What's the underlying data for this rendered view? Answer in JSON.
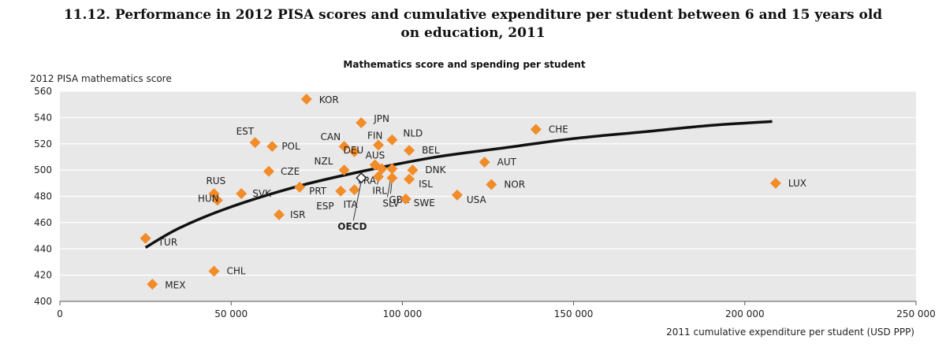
{
  "figure": {
    "title_line1": "11.12.  Performance in 2012 PISA scores and cumulative expenditure per student between 6 and 15 years old",
    "title_line2": "on education, 2011"
  },
  "colors": {
    "marker": "#f28c28",
    "panel": "#e8e8e8",
    "trend": "#111111"
  },
  "chart_data": {
    "type": "scatter",
    "title": "Mathematics score and spending per student",
    "xlabel": "2011 cumulative expenditure per student (USD PPP)",
    "ylabel": "2012 PISA mathematics score",
    "xlim": [
      0,
      250000
    ],
    "ylim": [
      400,
      560
    ],
    "xticks": [
      0,
      50000,
      100000,
      150000,
      200000,
      250000
    ],
    "xtick_labels": [
      "0",
      "50 000",
      "100 000",
      "150 000",
      "200 000",
      "250 000"
    ],
    "yticks": [
      400,
      420,
      440,
      460,
      480,
      500,
      520,
      540,
      560
    ],
    "ytick_labels": [
      "400",
      "420",
      "440",
      "460",
      "480",
      "500",
      "520",
      "540",
      "560"
    ],
    "grid": "horizontal",
    "points": [
      {
        "label": "KOR",
        "x": 72000,
        "y": 554
      },
      {
        "label": "JPN",
        "x": 88000,
        "y": 536
      },
      {
        "label": "CHE",
        "x": 139000,
        "y": 531
      },
      {
        "label": "FIN",
        "x": 93000,
        "y": 519
      },
      {
        "label": "NLD",
        "x": 97000,
        "y": 523
      },
      {
        "label": "CAN",
        "x": 83000,
        "y": 518
      },
      {
        "label": "EST",
        "x": 57000,
        "y": 521
      },
      {
        "label": "POL",
        "x": 62000,
        "y": 518
      },
      {
        "label": "BEL",
        "x": 102000,
        "y": 515
      },
      {
        "label": "DEU",
        "x": 86000,
        "y": 514
      },
      {
        "label": "AUS",
        "x": 92000,
        "y": 504
      },
      {
        "label": "AUT",
        "x": 124000,
        "y": 506
      },
      {
        "label": "NZL",
        "x": 83000,
        "y": 500
      },
      {
        "label": "FRA",
        "x": 93000,
        "y": 495
      },
      {
        "label": "DNK",
        "x": 103000,
        "y": 500
      },
      {
        "label": "CZE",
        "x": 61000,
        "y": 499
      },
      {
        "label": "IRL",
        "x": 94000,
        "y": 501
      },
      {
        "label": "GBR",
        "x": 97000,
        "y": 494
      },
      {
        "label": "ISL",
        "x": 102000,
        "y": 493
      },
      {
        "label": "SLV",
        "x": 97000,
        "y": 501
      },
      {
        "label": "NOR",
        "x": 126000,
        "y": 489
      },
      {
        "label": "LUX",
        "x": 209000,
        "y": 490
      },
      {
        "label": "RUS",
        "x": 45000,
        "y": 482
      },
      {
        "label": "HUN",
        "x": 46000,
        "y": 477
      },
      {
        "label": "SVK",
        "x": 53000,
        "y": 482
      },
      {
        "label": "PRT",
        "x": 70000,
        "y": 487
      },
      {
        "label": "ESP",
        "x": 82000,
        "y": 484
      },
      {
        "label": "ITA",
        "x": 86000,
        "y": 485
      },
      {
        "label": "USA",
        "x": 116000,
        "y": 481
      },
      {
        "label": "SWE",
        "x": 101000,
        "y": 478
      },
      {
        "label": "ISR",
        "x": 64000,
        "y": 466
      },
      {
        "label": "TUR",
        "x": 25000,
        "y": 448
      },
      {
        "label": "CHL",
        "x": 45000,
        "y": 423
      },
      {
        "label": "MEX",
        "x": 27000,
        "y": 413
      }
    ],
    "oecd_average": {
      "label": "OECD",
      "x": 88000,
      "y": 494
    },
    "trend_line": {
      "type": "logarithmic",
      "x": [
        25000,
        35000,
        50000,
        70000,
        90000,
        110000,
        130000,
        150000,
        170000,
        190000,
        208000
      ],
      "y": [
        441,
        456,
        472,
        488,
        500,
        510,
        517,
        524,
        529,
        534,
        537
      ]
    }
  }
}
